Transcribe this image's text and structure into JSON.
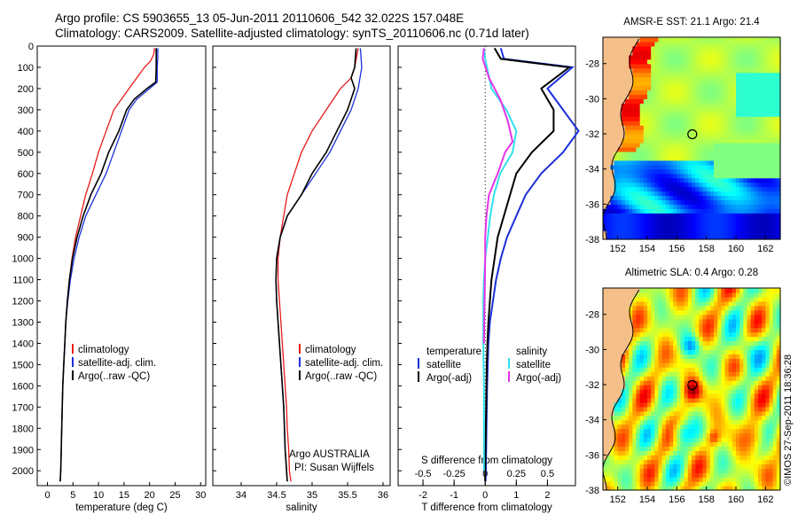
{
  "title_line1": "Argo profile: CS 5903655_13 05-Jun-2011 20110606_542 32.022S 157.048E",
  "title_line2": "Climatology: CARS2009. Satellite-adjusted climatology: synTS_20110606.nc (0.71d later)",
  "colors": {
    "clim": "#e81a1a",
    "sat": "#1a2fd8",
    "argo": "#000000",
    "sat_s": "#33e0ee",
    "argo_s": "#e633e6",
    "land": "#f5bf8a"
  },
  "chart_data": [
    {
      "type": "line",
      "xlabel": "temperature (deg C)",
      "xlim": [
        -2,
        31
      ],
      "xticks": [
        0,
        5,
        10,
        15,
        20,
        25,
        30
      ],
      "ylim": [
        0,
        2070
      ],
      "yticks": [
        0,
        100,
        200,
        300,
        400,
        500,
        600,
        700,
        800,
        900,
        1000,
        1100,
        1200,
        1300,
        1400,
        1500,
        1600,
        1700,
        1800,
        1900,
        2000
      ],
      "legend": [
        "climatology",
        "satellite-adj. clim.",
        "Argo(..raw -QC)"
      ],
      "legend_position": "lower-middle",
      "series": [
        {
          "name": "climatology",
          "color": "clim",
          "points": [
            [
              21.0,
              10
            ],
            [
              20.8,
              40
            ],
            [
              20.2,
              70
            ],
            [
              19.0,
              100
            ],
            [
              17.5,
              150
            ],
            [
              16.0,
              200
            ],
            [
              14.5,
              250
            ],
            [
              13.0,
              300
            ],
            [
              11.5,
              400
            ],
            [
              10.0,
              500
            ],
            [
              8.8,
              600
            ],
            [
              7.5,
              700
            ],
            [
              6.5,
              800
            ],
            [
              5.5,
              900
            ],
            [
              4.8,
              1000
            ],
            [
              4.3,
              1100
            ],
            [
              3.9,
              1200
            ],
            [
              3.6,
              1300
            ],
            [
              3.4,
              1400
            ],
            [
              3.2,
              1500
            ],
            [
              3.0,
              1600
            ],
            [
              2.9,
              1700
            ],
            [
              2.8,
              1800
            ],
            [
              2.7,
              1900
            ],
            [
              2.6,
              2000
            ],
            [
              2.5,
              2050
            ]
          ]
        },
        {
          "name": "satellite-adj. clim.",
          "color": "sat",
          "points": [
            [
              21.6,
              10
            ],
            [
              21.6,
              60
            ],
            [
              21.5,
              100
            ],
            [
              21.5,
              170
            ],
            [
              20.0,
              200
            ],
            [
              17.5,
              250
            ],
            [
              16.0,
              300
            ],
            [
              14.5,
              400
            ],
            [
              13.0,
              500
            ],
            [
              11.5,
              600
            ],
            [
              9.5,
              700
            ],
            [
              7.5,
              800
            ],
            [
              6.2,
              900
            ],
            [
              5.2,
              1000
            ],
            [
              4.5,
              1100
            ],
            [
              4.0,
              1200
            ],
            [
              3.6,
              1300
            ],
            [
              3.4,
              1400
            ],
            [
              3.2,
              1500
            ],
            [
              3.0,
              1600
            ],
            [
              2.9,
              1700
            ],
            [
              2.8,
              1800
            ],
            [
              2.7,
              1900
            ],
            [
              2.6,
              2000
            ],
            [
              2.5,
              2050
            ]
          ]
        },
        {
          "name": "Argo(..raw -QC)",
          "color": "argo",
          "points": [
            [
              21.3,
              10
            ],
            [
              21.3,
              60
            ],
            [
              21.3,
              100
            ],
            [
              21.2,
              170
            ],
            [
              19.5,
              200
            ],
            [
              17.0,
              250
            ],
            [
              15.5,
              300
            ],
            [
              14.0,
              400
            ],
            [
              12.0,
              500
            ],
            [
              10.5,
              600
            ],
            [
              8.5,
              700
            ],
            [
              7.0,
              800
            ],
            [
              5.8,
              900
            ],
            [
              4.9,
              1000
            ],
            [
              4.3,
              1100
            ],
            [
              3.9,
              1200
            ],
            [
              3.6,
              1300
            ],
            [
              3.4,
              1400
            ],
            [
              3.2,
              1500
            ],
            [
              3.0,
              1600
            ],
            [
              2.9,
              1700
            ],
            [
              2.8,
              1800
            ],
            [
              2.7,
              1900
            ],
            [
              2.6,
              2000
            ],
            [
              2.5,
              2050
            ]
          ]
        }
      ]
    },
    {
      "type": "line",
      "xlabel": "salinity",
      "xlim": [
        33.6,
        36.1
      ],
      "xticks": [
        34,
        34.5,
        35,
        35.5,
        36
      ],
      "ylim": [
        0,
        2070
      ],
      "legend": [
        "climatology",
        "satellite-adj. clim.",
        "Argo(..raw -QC)"
      ],
      "legend_position": "lower-right",
      "annotation": [
        "Argo AUSTRALIA",
        "PI: Susan Wijffels"
      ],
      "series": [
        {
          "name": "climatology",
          "color": "clim",
          "points": [
            [
              35.65,
              10
            ],
            [
              35.6,
              100
            ],
            [
              35.55,
              150
            ],
            [
              35.4,
              200
            ],
            [
              35.2,
              300
            ],
            [
              35.0,
              400
            ],
            [
              34.85,
              500
            ],
            [
              34.75,
              600
            ],
            [
              34.65,
              700
            ],
            [
              34.6,
              800
            ],
            [
              34.55,
              900
            ],
            [
              34.52,
              1000
            ],
            [
              34.52,
              1100
            ],
            [
              34.54,
              1200
            ],
            [
              34.56,
              1300
            ],
            [
              34.58,
              1400
            ],
            [
              34.6,
              1500
            ],
            [
              34.62,
              1600
            ],
            [
              34.64,
              1700
            ],
            [
              34.65,
              1800
            ],
            [
              34.67,
              1900
            ],
            [
              34.68,
              2000
            ],
            [
              34.7,
              2050
            ]
          ]
        },
        {
          "name": "satellite-adj. clim.",
          "color": "sat",
          "points": [
            [
              35.68,
              10
            ],
            [
              35.7,
              100
            ],
            [
              35.65,
              200
            ],
            [
              35.55,
              300
            ],
            [
              35.4,
              400
            ],
            [
              35.25,
              500
            ],
            [
              35.05,
              600
            ],
            [
              34.85,
              700
            ],
            [
              34.65,
              800
            ],
            [
              34.55,
              900
            ],
            [
              34.5,
              1000
            ],
            [
              34.49,
              1100
            ],
            [
              34.5,
              1200
            ],
            [
              34.52,
              1300
            ],
            [
              34.54,
              1400
            ],
            [
              34.56,
              1500
            ],
            [
              34.58,
              1600
            ],
            [
              34.6,
              1700
            ],
            [
              34.61,
              1800
            ],
            [
              34.62,
              1900
            ],
            [
              34.64,
              2000
            ],
            [
              34.65,
              2050
            ]
          ]
        },
        {
          "name": "Argo(..raw -QC)",
          "color": "argo",
          "points": [
            [
              35.62,
              10
            ],
            [
              35.6,
              100
            ],
            [
              35.55,
              150
            ],
            [
              35.6,
              200
            ],
            [
              35.5,
              300
            ],
            [
              35.35,
              400
            ],
            [
              35.2,
              500
            ],
            [
              35.0,
              600
            ],
            [
              34.85,
              700
            ],
            [
              34.65,
              800
            ],
            [
              34.55,
              900
            ],
            [
              34.5,
              1000
            ],
            [
              34.49,
              1100
            ],
            [
              34.5,
              1200
            ],
            [
              34.52,
              1300
            ],
            [
              34.54,
              1400
            ],
            [
              34.56,
              1500
            ],
            [
              34.58,
              1600
            ],
            [
              34.6,
              1700
            ],
            [
              34.61,
              1800
            ],
            [
              34.62,
              1900
            ],
            [
              34.64,
              2000
            ],
            [
              34.65,
              2050
            ]
          ]
        }
      ]
    },
    {
      "type": "line",
      "xlabel": "T difference from climatology",
      "xlabel2": "S difference from climatology",
      "xlim": [
        -2.8,
        2.9
      ],
      "xticks": [
        -2,
        -1,
        0,
        1,
        2
      ],
      "xticks2": [
        -0.5,
        -0.25,
        0,
        0.25,
        0.5
      ],
      "xtick2_labels": [
        "-0.5",
        "-0.25",
        "0",
        "0.25",
        "0.5"
      ],
      "s_scale": 4,
      "ylim": [
        0,
        2070
      ],
      "legend_temperature": {
        "title": "temperature",
        "items": [
          "satellite",
          "Argo(-adj)"
        ]
      },
      "legend_salinity": {
        "title": "salinity",
        "items": [
          "satellite",
          "Argo(-adj)"
        ]
      },
      "series": [
        {
          "name": "T satellite",
          "color": "sat",
          "points": [
            [
              0.5,
              10
            ],
            [
              0.6,
              60
            ],
            [
              2.8,
              100
            ],
            [
              2.0,
              200
            ],
            [
              2.5,
              300
            ],
            [
              3.0,
              400
            ],
            [
              2.5,
              500
            ],
            [
              1.8,
              600
            ],
            [
              1.3,
              700
            ],
            [
              1.0,
              800
            ],
            [
              0.7,
              900
            ],
            [
              0.5,
              1000
            ],
            [
              0.35,
              1100
            ],
            [
              0.25,
              1200
            ],
            [
              0.15,
              1300
            ],
            [
              0.1,
              1400
            ],
            [
              0.08,
              1500
            ],
            [
              0.06,
              1600
            ],
            [
              0.05,
              1700
            ],
            [
              0.04,
              1800
            ],
            [
              0.03,
              1900
            ],
            [
              0.02,
              2000
            ],
            [
              0.01,
              2050
            ]
          ]
        },
        {
          "name": "T Argo(-adj)",
          "color": "argo",
          "points": [
            [
              0.3,
              10
            ],
            [
              0.5,
              60
            ],
            [
              2.7,
              100
            ],
            [
              1.8,
              200
            ],
            [
              2.2,
              300
            ],
            [
              2.2,
              400
            ],
            [
              1.5,
              500
            ],
            [
              1.0,
              600
            ],
            [
              0.8,
              700
            ],
            [
              0.6,
              800
            ],
            [
              0.4,
              900
            ],
            [
              0.3,
              1000
            ],
            [
              0.2,
              1100
            ],
            [
              0.15,
              1200
            ],
            [
              0.1,
              1300
            ],
            [
              0.07,
              1400
            ],
            [
              0.05,
              1500
            ],
            [
              0.04,
              1600
            ],
            [
              0.03,
              1700
            ],
            [
              0.02,
              1800
            ],
            [
              0.01,
              1900
            ],
            [
              0.0,
              2000
            ],
            [
              0.0,
              2050
            ]
          ]
        },
        {
          "name": "S satellite",
          "color": "sat_s",
          "points": [
            [
              -0.01,
              10
            ],
            [
              0.0,
              60
            ],
            [
              0.05,
              200
            ],
            [
              0.17,
              300
            ],
            [
              0.25,
              400
            ],
            [
              0.22,
              500
            ],
            [
              0.12,
              600
            ],
            [
              0.07,
              700
            ],
            [
              0.04,
              800
            ],
            [
              0.02,
              900
            ],
            [
              0.0,
              1000
            ],
            [
              -0.01,
              1100
            ],
            [
              -0.015,
              1200
            ],
            [
              -0.015,
              1400
            ],
            [
              -0.01,
              1600
            ],
            [
              -0.01,
              1800
            ],
            [
              -0.01,
              2000
            ]
          ]
        },
        {
          "name": "S Argo(-adj)",
          "color": "argo_s",
          "points": [
            [
              -0.01,
              10
            ],
            [
              -0.02,
              60
            ],
            [
              0.03,
              150
            ],
            [
              0.12,
              250
            ],
            [
              0.18,
              350
            ],
            [
              0.22,
              450
            ],
            [
              0.16,
              500
            ],
            [
              0.1,
              600
            ],
            [
              0.03,
              700
            ],
            [
              0.01,
              800
            ],
            [
              0.0,
              900
            ],
            [
              0.0,
              1000
            ],
            [
              -0.005,
              1200
            ],
            [
              -0.01,
              1400
            ]
          ]
        }
      ]
    },
    {
      "type": "heatmap",
      "title": "AMSR-E SST: 21.1 Argo: 21.4",
      "xticks": [
        152,
        154,
        156,
        158,
        160,
        162
      ],
      "yticks": [
        -28,
        -30,
        -32,
        -34,
        -36,
        -38
      ],
      "xlim": [
        151,
        163
      ],
      "ylim": [
        -38,
        -26.5
      ],
      "colormap": "jet",
      "marker": {
        "lon": 157.048,
        "lat": -32.022
      }
    },
    {
      "type": "heatmap",
      "title": "Altimetric SLA: 0.4 Argo: 0.28",
      "xticks": [
        152,
        154,
        156,
        158,
        160,
        162
      ],
      "yticks": [
        -28,
        -30,
        -32,
        -34,
        -36,
        -38
      ],
      "xlim": [
        151,
        163
      ],
      "ylim": [
        -38,
        -26.5
      ],
      "colormap": "jet",
      "marker": {
        "lon": 157.048,
        "lat": -32.022
      }
    }
  ],
  "side_label": "©IMOS 27-Sep-2011 18:36:28"
}
